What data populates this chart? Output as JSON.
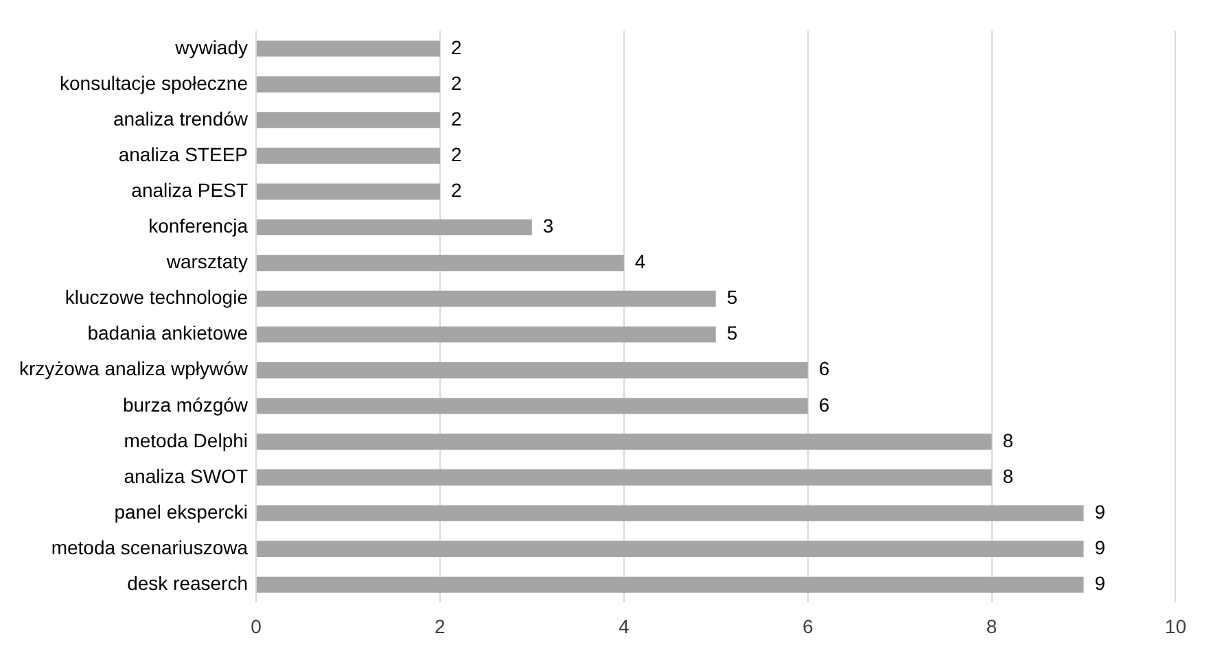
{
  "chart_data": {
    "type": "bar",
    "orientation": "horizontal",
    "categories": [
      "wywiady",
      "konsultacje społeczne",
      "analiza trendów",
      "analiza STEEP",
      "analiza PEST",
      "konferencja",
      "warsztaty",
      "kluczowe technologie",
      "badania ankietowe",
      "krzyżowa analiza wpływów",
      "burza mózgów",
      "metoda Delphi",
      "analiza SWOT",
      "panel ekspercki",
      "metoda scenariuszowa",
      "desk reaserch"
    ],
    "values": [
      2,
      2,
      2,
      2,
      2,
      3,
      4,
      5,
      5,
      6,
      6,
      8,
      8,
      9,
      9,
      9
    ],
    "color": "#a5a5a5",
    "xlim": [
      0,
      10
    ],
    "xticks": [
      0,
      2,
      4,
      6,
      8,
      10
    ],
    "grid": "x",
    "data_labels": true,
    "legend": false
  }
}
